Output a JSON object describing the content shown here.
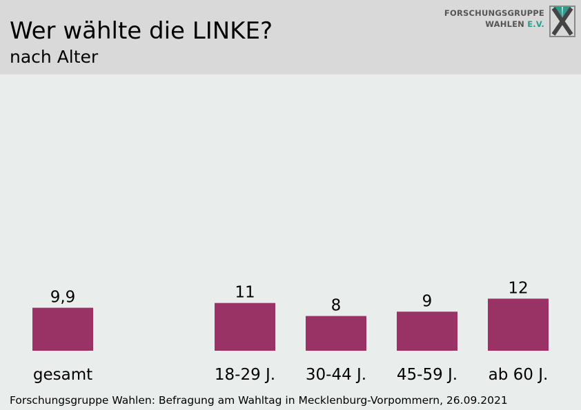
{
  "header": {
    "title": "Wer wählte die LINKE?",
    "subtitle": "nach Alter",
    "logo_line1": "FORSCHUNGSGRUPPE",
    "logo_line2_main": "WAHLEN ",
    "logo_line2_accent": "E.V."
  },
  "colors": {
    "bar": "#993366",
    "background": "#e9edec",
    "header_bg": "#d9d9d9",
    "logo_accent": "#2a9d8f"
  },
  "chart_data": {
    "type": "bar",
    "categories": [
      "gesamt",
      "18-29 J.",
      "30-44 J.",
      "45-59 J.",
      "ab 60 J."
    ],
    "values": [
      9.9,
      11,
      8,
      9,
      12
    ],
    "value_labels": [
      "9,9",
      "11",
      "8",
      "9",
      "12"
    ],
    "title": "Wer wählte die LINKE?",
    "subtitle": "nach Alter",
    "xlabel": "",
    "ylabel": "",
    "grid": false,
    "legend": "none"
  },
  "footer": {
    "source": "Forschungsgruppe Wahlen: Befragung am Wahltag in Mecklenburg-Vorpommern, 26.09.2021"
  }
}
